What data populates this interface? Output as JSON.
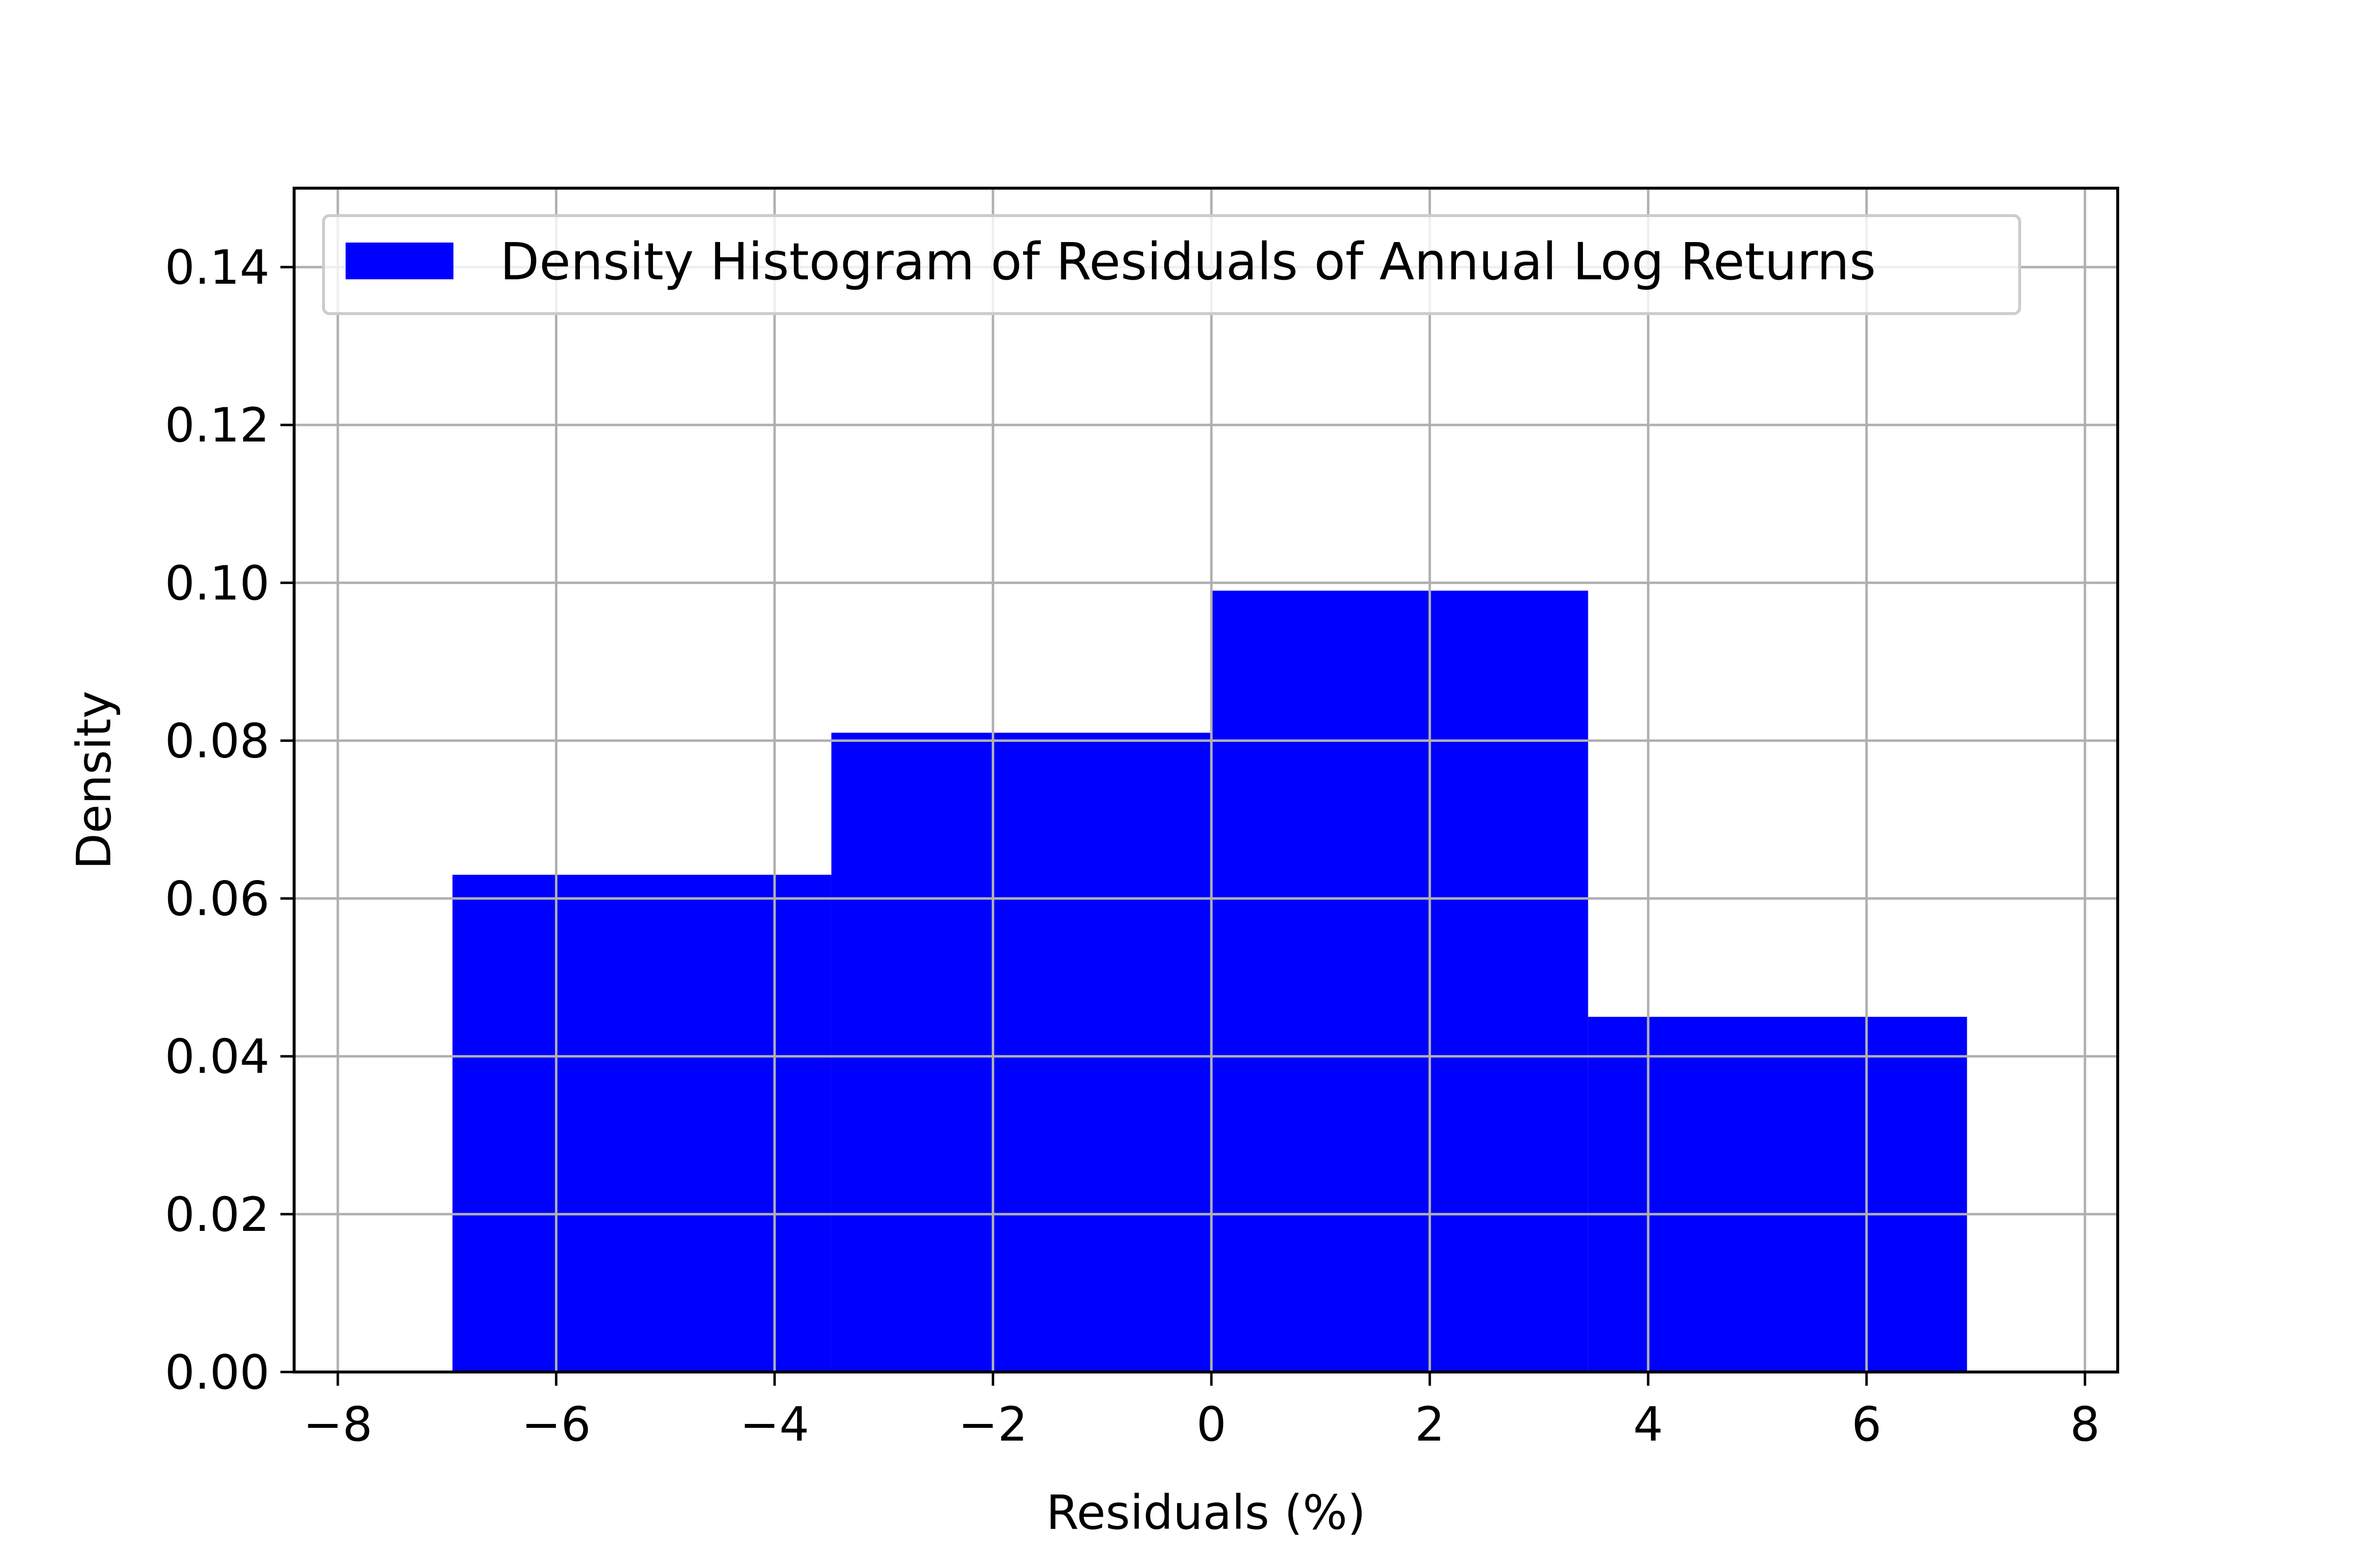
{
  "chart_data": {
    "type": "bar",
    "subtype": "histogram",
    "xlabel": "Residuals (%)",
    "ylabel": "Density",
    "xlim": [
      -8.4,
      8.3
    ],
    "ylim": [
      0,
      0.15
    ],
    "xticks": [
      -8,
      -6,
      -4,
      -2,
      0,
      2,
      4,
      6,
      8
    ],
    "xtick_labels": [
      "−8",
      "−6",
      "−4",
      "−2",
      "0",
      "2",
      "4",
      "6",
      "8"
    ],
    "yticks": [
      0,
      0.02,
      0.04,
      0.06,
      0.08,
      0.1,
      0.12,
      0.14
    ],
    "ytick_labels": [
      "0.00",
      "0.02",
      "0.04",
      "0.06",
      "0.08",
      "0.10",
      "0.12",
      "0.14"
    ],
    "bins": [
      {
        "x0": -6.95,
        "x1": -3.48,
        "value": 0.063
      },
      {
        "x0": -3.48,
        "x1": -0.01,
        "value": 0.081
      },
      {
        "x0": -0.01,
        "x1": 3.45,
        "value": 0.099
      },
      {
        "x0": 3.45,
        "x1": 6.92,
        "value": 0.045
      }
    ],
    "series": [
      {
        "name": "Density Histogram of Residuals of Annual Log Returns",
        "color": "#0000ff"
      }
    ],
    "grid": true,
    "legend_position": "top-left"
  }
}
